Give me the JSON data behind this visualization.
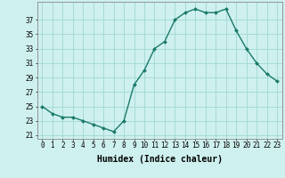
{
  "x": [
    0,
    1,
    2,
    3,
    4,
    5,
    6,
    7,
    8,
    9,
    10,
    11,
    12,
    13,
    14,
    15,
    16,
    17,
    18,
    19,
    20,
    21,
    22,
    23
  ],
  "y": [
    25,
    24,
    23.5,
    23.5,
    23,
    22.5,
    22,
    21.5,
    23,
    28,
    30,
    33,
    34,
    37,
    38,
    38.5,
    38,
    38,
    38.5,
    35.5,
    33,
    31,
    29.5,
    28.5
  ],
  "line_color": "#1a7a6a",
  "marker": "D",
  "markersize": 2.0,
  "linewidth": 1.0,
  "xlabel": "Humidex (Indice chaleur)",
  "xlabel_fontsize": 7,
  "ylabel_ticks": [
    21,
    23,
    25,
    27,
    29,
    31,
    33,
    35,
    37
  ],
  "ylim": [
    20.5,
    39.5
  ],
  "xlim": [
    -0.5,
    23.5
  ],
  "bg_color": "#cef0ee",
  "grid_color": "#a0d8d4",
  "tick_fontsize": 5.5,
  "xtick_labels": [
    "0",
    "1",
    "2",
    "3",
    "4",
    "5",
    "6",
    "7",
    "8",
    "9",
    "10",
    "11",
    "12",
    "13",
    "14",
    "15",
    "16",
    "17",
    "18",
    "19",
    "20",
    "21",
    "22",
    "23"
  ]
}
